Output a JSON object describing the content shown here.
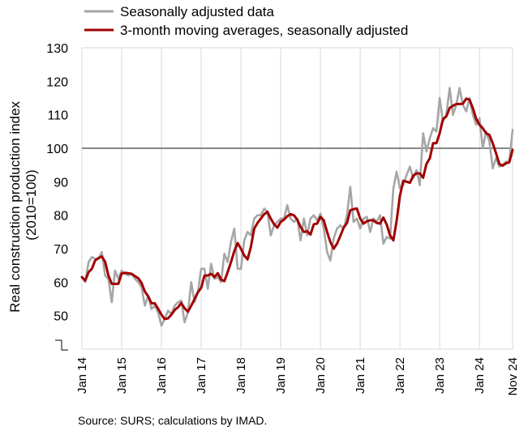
{
  "chart_data": {
    "type": "line",
    "ylabel_lines": [
      "Real construction production index",
      "(2010=100)"
    ],
    "ylim": [
      40,
      130
    ],
    "yticks": [
      50,
      60,
      70,
      80,
      90,
      100,
      110,
      120,
      130
    ],
    "xlim": [
      "Jan 14",
      "Nov 24"
    ],
    "xtick_labels": [
      "Jan 14",
      "Jan 15",
      "Jan 16",
      "Jan 17",
      "Jan 18",
      "Jan 19",
      "Jan 20",
      "Jan 21",
      "Jan 22",
      "Jan 23",
      "Jan 24",
      "Nov 24"
    ],
    "reference_line": 100,
    "grid": "vertical",
    "legend_position": "top",
    "source": "Source: SURS; calculations by IMAD.",
    "series": [
      {
        "name": "Seasonally adjusted data",
        "color": "#a6a6a6",
        "points": [
          [
            "Jan 14",
            61.5
          ],
          [
            "Feb 14",
            60
          ],
          [
            "Mar 14",
            66
          ],
          [
            "Apr 14",
            67.5
          ],
          [
            "May 14",
            67
          ],
          [
            "Jun 14",
            67
          ],
          [
            "Jul 14",
            69
          ],
          [
            "Aug 14",
            62
          ],
          [
            "Sep 14",
            61
          ],
          [
            "Oct 14",
            54
          ],
          [
            "Nov 14",
            63.5
          ],
          [
            "Dec 14",
            61
          ],
          [
            "Jan 15",
            63.5
          ],
          [
            "Feb 15",
            62.5
          ],
          [
            "Mar 15",
            62
          ],
          [
            "Apr 15",
            62.5
          ],
          [
            "May 15",
            61
          ],
          [
            "Jun 15",
            60
          ],
          [
            "Jul 15",
            58.5
          ],
          [
            "Aug 15",
            53
          ],
          [
            "Sep 15",
            56
          ],
          [
            "Oct 15",
            52
          ],
          [
            "Nov 15",
            53
          ],
          [
            "Dec 15",
            51
          ],
          [
            "Jan 16",
            47
          ],
          [
            "Feb 16",
            49
          ],
          [
            "Mar 16",
            51.5
          ],
          [
            "Apr 16",
            50.5
          ],
          [
            "May 16",
            53
          ],
          [
            "Jun 16",
            54
          ],
          [
            "Jul 16",
            54.5
          ],
          [
            "Aug 16",
            48
          ],
          [
            "Sep 16",
            51
          ],
          [
            "Oct 16",
            60
          ],
          [
            "Nov 16",
            54
          ],
          [
            "Dec 16",
            57
          ],
          [
            "Jan 17",
            64
          ],
          [
            "Feb 17",
            64
          ],
          [
            "Mar 17",
            58
          ],
          [
            "Apr 17",
            65.5
          ],
          [
            "May 17",
            61
          ],
          [
            "Jun 17",
            61.5
          ],
          [
            "Jul 17",
            60
          ],
          [
            "Aug 17",
            68.5
          ],
          [
            "Sep 17",
            66
          ],
          [
            "Oct 17",
            72
          ],
          [
            "Nov 17",
            76
          ],
          [
            "Dec 17",
            64
          ],
          [
            "Jan 18",
            64
          ],
          [
            "Feb 18",
            72.5
          ],
          [
            "Mar 18",
            75
          ],
          [
            "Apr 18",
            74
          ],
          [
            "May 18",
            79
          ],
          [
            "Jun 18",
            80
          ],
          [
            "Jul 18",
            80
          ],
          [
            "Aug 18",
            82
          ],
          [
            "Sep 18",
            81
          ],
          [
            "Oct 18",
            74
          ],
          [
            "Nov 18",
            77
          ],
          [
            "Dec 18",
            78
          ],
          [
            "Jan 19",
            79
          ],
          [
            "Feb 19",
            79
          ],
          [
            "Mar 19",
            83
          ],
          [
            "Apr 19",
            79
          ],
          [
            "May 19",
            78
          ],
          [
            "Jun 19",
            79
          ],
          [
            "Jul 19",
            72.5
          ],
          [
            "Aug 19",
            79
          ],
          [
            "Sep 19",
            74
          ],
          [
            "Oct 19",
            79
          ],
          [
            "Nov 19",
            80
          ],
          [
            "Dec 19",
            78.5
          ],
          [
            "Jan 20",
            80.5
          ],
          [
            "Feb 20",
            76
          ],
          [
            "Mar 20",
            69
          ],
          [
            "Apr 20",
            66.5
          ],
          [
            "May 20",
            73
          ],
          [
            "Jun 20",
            76
          ],
          [
            "Jul 20",
            77
          ],
          [
            "Aug 20",
            76
          ],
          [
            "Sep 20",
            80
          ],
          [
            "Oct 20",
            88.5
          ],
          [
            "Nov 20",
            78
          ],
          [
            "Dec 20",
            79
          ],
          [
            "Jan 21",
            76
          ],
          [
            "Feb 21",
            79
          ],
          [
            "Mar 21",
            79.5
          ],
          [
            "Apr 21",
            75
          ],
          [
            "May 21",
            79
          ],
          [
            "Jun 21",
            78
          ],
          [
            "Jul 21",
            80
          ],
          [
            "Aug 21",
            71.5
          ],
          [
            "Sep 21",
            73.5
          ],
          [
            "Oct 21",
            73
          ],
          [
            "Nov 21",
            88
          ],
          [
            "Dec 21",
            93
          ],
          [
            "Jan 22",
            88
          ],
          [
            "Feb 22",
            89
          ],
          [
            "Mar 22",
            92
          ],
          [
            "Apr 22",
            94.5
          ],
          [
            "May 22",
            91
          ],
          [
            "Jun 22",
            93.5
          ],
          [
            "Jul 22",
            89
          ],
          [
            "Aug 22",
            104.5
          ],
          [
            "Sep 22",
            99
          ],
          [
            "Oct 22",
            103
          ],
          [
            "Nov 22",
            106
          ],
          [
            "Dec 22",
            105
          ],
          [
            "Jan 23",
            115
          ],
          [
            "Feb 23",
            108
          ],
          [
            "Mar 23",
            110
          ],
          [
            "Apr 23",
            118
          ],
          [
            "May 23",
            110
          ],
          [
            "Jun 23",
            113
          ],
          [
            "Jul 23",
            118
          ],
          [
            "Aug 23",
            113
          ],
          [
            "Sep 23",
            111
          ],
          [
            "Oct 23",
            115
          ],
          [
            "Nov 23",
            110
          ],
          [
            "Dec 23",
            107
          ],
          [
            "Jan 24",
            109
          ],
          [
            "Feb 24",
            100
          ],
          [
            "Mar 24",
            105
          ],
          [
            "Apr 24",
            102
          ],
          [
            "May 24",
            94
          ],
          [
            "Jun 24",
            97
          ],
          [
            "Jul 24",
            94.5
          ],
          [
            "Aug 24",
            95
          ],
          [
            "Sep 24",
            96
          ],
          [
            "Oct 24",
            96
          ],
          [
            "Nov 24",
            105.5
          ]
        ]
      },
      {
        "name": "3-month moving averages, seasonally adjusted",
        "color": "#a00000",
        "points": [
          [
            "Jan 14",
            61.5
          ],
          [
            "Feb 14",
            60.5
          ],
          [
            "Mar 14",
            63
          ],
          [
            "Apr 14",
            64
          ],
          [
            "May 14",
            66.5
          ],
          [
            "Jun 14",
            67.2
          ],
          [
            "Jul 14",
            67.7
          ],
          [
            "Aug 14",
            66.1
          ],
          [
            "Sep 14",
            62
          ],
          [
            "Oct 14",
            59.5
          ],
          [
            "Nov 14",
            59.5
          ],
          [
            "Dec 14",
            59.5
          ],
          [
            "Jan 15",
            62.6
          ],
          [
            "Feb 15",
            62.8
          ],
          [
            "Mar 15",
            62.7
          ],
          [
            "Apr 15",
            62.5
          ],
          [
            "May 15",
            61.8
          ],
          [
            "Jun 15",
            61.2
          ],
          [
            "Jul 15",
            59.8
          ],
          [
            "Aug 15",
            57.2
          ],
          [
            "Sep 15",
            55.8
          ],
          [
            "Oct 15",
            53.7
          ],
          [
            "Nov 15",
            53.7
          ],
          [
            "Dec 15",
            52.1
          ],
          [
            "Jan 16",
            50.3
          ],
          [
            "Feb 16",
            49
          ],
          [
            "Mar 16",
            49.2
          ],
          [
            "Apr 16",
            50.3
          ],
          [
            "May 16",
            51.7
          ],
          [
            "Jun 16",
            52.5
          ],
          [
            "Jul 16",
            53.8
          ],
          [
            "Aug 16",
            52.2
          ],
          [
            "Sep 16",
            51.2
          ],
          [
            "Oct 16",
            53
          ],
          [
            "Nov 16",
            55
          ],
          [
            "Dec 16",
            57
          ],
          [
            "Jan 17",
            58.3
          ],
          [
            "Feb 17",
            62
          ],
          [
            "Mar 17",
            62
          ],
          [
            "Apr 17",
            62.5
          ],
          [
            "May 17",
            61.5
          ],
          [
            "Jun 17",
            62.7
          ],
          [
            "Jul 17",
            60.8
          ],
          [
            "Aug 17",
            60.3
          ],
          [
            "Sep 17",
            63
          ],
          [
            "Oct 17",
            66
          ],
          [
            "Nov 17",
            69.3
          ],
          [
            "Dec 17",
            71.7
          ],
          [
            "Jan 18",
            70
          ],
          [
            "Feb 18",
            68
          ],
          [
            "Mar 18",
            66.8
          ],
          [
            "Apr 18",
            70.5
          ],
          [
            "May 18",
            76
          ],
          [
            "Jun 18",
            77.7
          ],
          [
            "Jul 18",
            79
          ],
          [
            "Aug 18",
            80.3
          ],
          [
            "Sep 18",
            81
          ],
          [
            "Oct 18",
            79
          ],
          [
            "Nov 18",
            77.3
          ],
          [
            "Dec 18",
            76.3
          ],
          [
            "Jan 19",
            78
          ],
          [
            "Feb 19",
            78.7
          ],
          [
            "Mar 19",
            79.7
          ],
          [
            "Apr 19",
            80.3
          ],
          [
            "May 19",
            80
          ],
          [
            "Jun 19",
            78.7
          ],
          [
            "Jul 19",
            76.5
          ],
          [
            "Aug 19",
            75
          ],
          [
            "Sep 19",
            75.2
          ],
          [
            "Oct 19",
            74.2
          ],
          [
            "Nov 19",
            77.3
          ],
          [
            "Dec 19",
            77.5
          ],
          [
            "Jan 20",
            79.5
          ],
          [
            "Feb 20",
            78.5
          ],
          [
            "Mar 20",
            75
          ],
          [
            "Apr 20",
            72
          ],
          [
            "May 20",
            70
          ],
          [
            "Jun 20",
            71.5
          ],
          [
            "Jul 20",
            73.8
          ],
          [
            "Aug 20",
            76.3
          ],
          [
            "Sep 20",
            77.7
          ],
          [
            "Oct 20",
            81.5
          ],
          [
            "Nov 20",
            81.8
          ],
          [
            "Dec 20",
            82
          ],
          [
            "Jan 21",
            79
          ],
          [
            "Feb 21",
            77.5
          ],
          [
            "Mar 21",
            78.2
          ],
          [
            "Apr 21",
            78.5
          ],
          [
            "May 21",
            78.5
          ],
          [
            "Jun 21",
            77.7
          ],
          [
            "Jul 21",
            77.5
          ],
          [
            "Aug 21",
            79.3
          ],
          [
            "Sep 21",
            77.2
          ],
          [
            "Oct 21",
            74
          ],
          [
            "Nov 21",
            72.5
          ],
          [
            "Dec 21",
            78.3
          ],
          [
            "Jan 22",
            85.8
          ],
          [
            "Feb 22",
            90.3
          ],
          [
            "Mar 22",
            90
          ],
          [
            "Apr 22",
            89.7
          ],
          [
            "May 22",
            91.8
          ],
          [
            "Jun 22",
            92.5
          ],
          [
            "Jul 22",
            92.5
          ],
          [
            "Aug 22",
            91.2
          ],
          [
            "Sep 22",
            95.3
          ],
          [
            "Oct 22",
            97
          ],
          [
            "Nov 22",
            101.5
          ],
          [
            "Dec 22",
            101.5
          ],
          [
            "Jan 23",
            104.5
          ],
          [
            "Feb 23",
            108.7
          ],
          [
            "Mar 23",
            109.5
          ],
          [
            "Apr 23",
            112
          ],
          [
            "May 23",
            112.7
          ],
          [
            "Jun 23",
            113.2
          ],
          [
            "Jul 23",
            113.2
          ],
          [
            "Aug 23",
            113.3
          ],
          [
            "Sep 23",
            114.8
          ],
          [
            "Oct 23",
            114.5
          ],
          [
            "Nov 23",
            112
          ],
          [
            "Dec 23",
            108.8
          ],
          [
            "Jan 24",
            107
          ],
          [
            "Feb 24",
            106
          ],
          [
            "Mar 24",
            104.5
          ],
          [
            "Apr 24",
            104
          ],
          [
            "May 24",
            101.5
          ],
          [
            "Jun 24",
            98.5
          ],
          [
            "Jul 24",
            95.3
          ],
          [
            "Aug 24",
            94.8
          ],
          [
            "Sep 24",
            95.5
          ],
          [
            "Oct 24",
            95.8
          ],
          [
            "Nov 24",
            99.5
          ]
        ]
      }
    ]
  }
}
